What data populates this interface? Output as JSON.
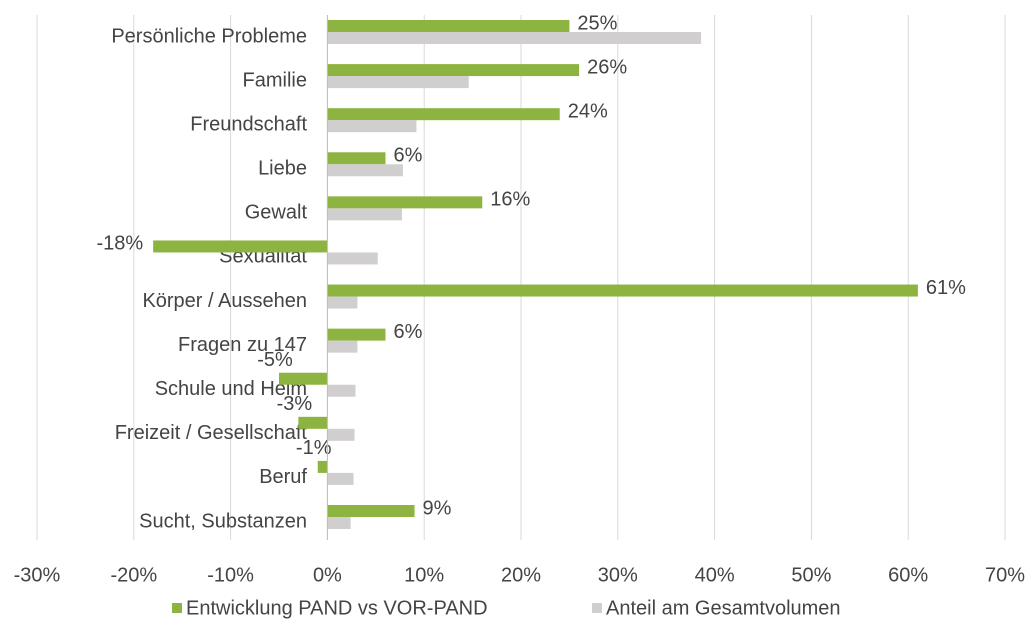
{
  "chart_data": {
    "type": "hbar",
    "categories": [
      "Persönliche Probleme",
      "Familie",
      "Freundschaft",
      "Liebe",
      "Gewalt",
      "Sexualität",
      "Körper / Aussehen",
      "Fragen zu 147",
      "Schule und Heim",
      "Freizeit / Gesellschaft",
      "Beruf",
      "Sucht, Substanzen"
    ],
    "series": [
      {
        "name": "Entwicklung PAND vs VOR-PAND",
        "color": "#8db440",
        "values": [
          25,
          26,
          24,
          6,
          16,
          -18,
          61,
          6,
          -5,
          -3,
          -1,
          9
        ],
        "value_labels": [
          "25%",
          "26%",
          "24%",
          "6%",
          "16%",
          "-18%",
          "61%",
          "6%",
          "-5%",
          "-3%",
          "-1%",
          "9%"
        ]
      },
      {
        "name": "Anteil am Gesamtvolumen",
        "color": "#d0cece",
        "values": [
          38.6,
          14.6,
          9.2,
          7.8,
          7.7,
          5.2,
          3.1,
          3.1,
          2.9,
          2.8,
          2.7,
          2.4
        ]
      }
    ],
    "xlim": [
      -30,
      70
    ],
    "xticks": [
      {
        "value": -30,
        "label": "-30%"
      },
      {
        "value": -20,
        "label": "-20%"
      },
      {
        "value": -10,
        "label": "-10%"
      },
      {
        "value": 0,
        "label": "0%"
      },
      {
        "value": 10,
        "label": "10%"
      },
      {
        "value": 20,
        "label": "20%"
      },
      {
        "value": 30,
        "label": "30%"
      },
      {
        "value": 40,
        "label": "40%"
      },
      {
        "value": 50,
        "label": "50%"
      },
      {
        "value": 60,
        "label": "60%"
      },
      {
        "value": 70,
        "label": "70%"
      }
    ],
    "grid": true,
    "legend": "bottom"
  }
}
